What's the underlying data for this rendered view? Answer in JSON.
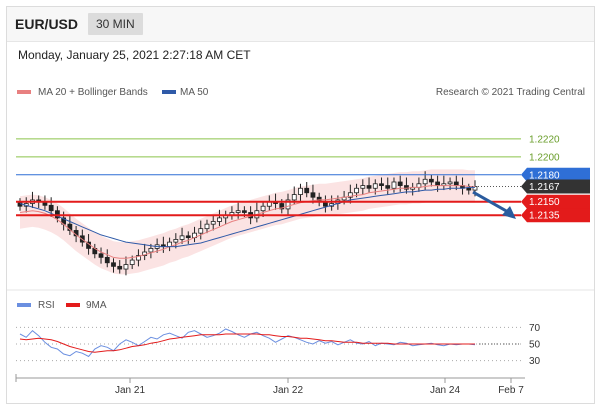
{
  "header": {
    "pair": "EUR/USD",
    "timeframe": "30 MIN"
  },
  "timestamp": "Monday, January 25, 2021 2:27:18 AM CET",
  "legend": {
    "ma20_label": "MA 20 + Bollinger Bands",
    "ma50_label": "MA 50",
    "credit": "Research © 2021 Trading Central",
    "rsi_label": "RSI",
    "rsi_ma_label": "9MA"
  },
  "colors": {
    "ma20": "#e88080",
    "ma50": "#2f5aa8",
    "resistance_green": "#8bc34a",
    "pivot_blue": "#2f6fd6",
    "support_red": "#e31b1b",
    "current_price_tag": "#333333",
    "bollinger_fill": "#fbe3e3",
    "forecast_arrow": "#2a5b9e",
    "rsi": "#6b8fe0",
    "rsi_ma": "#e31b1b"
  },
  "chart_data": [
    {
      "type": "candlestick",
      "title": "EUR/USD",
      "timeframe": "30 MIN",
      "ylim": [
        1.2055,
        1.226
      ],
      "x_labels": [
        "Jan 21",
        "Jan 22",
        "Jan 24",
        "Feb 7"
      ],
      "levels": [
        {
          "value": 1.222,
          "label": "1.2220",
          "kind": "resistance"
        },
        {
          "value": 1.22,
          "label": "1.2200",
          "kind": "resistance"
        },
        {
          "value": 1.218,
          "label": "1.2180",
          "kind": "pivot"
        },
        {
          "value": 1.2167,
          "label": "1.2167",
          "kind": "current"
        },
        {
          "value": 1.215,
          "label": "1.2150",
          "kind": "support"
        },
        {
          "value": 1.2135,
          "label": "1.2135",
          "kind": "support"
        }
      ],
      "close": [
        1.2145,
        1.2148,
        1.2152,
        1.215,
        1.2146,
        1.214,
        1.2132,
        1.2125,
        1.2118,
        1.2112,
        1.2105,
        1.2098,
        1.2092,
        1.2088,
        1.2082,
        1.2078,
        1.2075,
        1.208,
        1.2085,
        1.209,
        1.2094,
        1.2098,
        1.2102,
        1.21,
        1.2105,
        1.2108,
        1.2112,
        1.211,
        1.2115,
        1.212,
        1.2125,
        1.2128,
        1.2132,
        1.2135,
        1.2138,
        1.214,
        1.2138,
        1.2132,
        1.214,
        1.2145,
        1.215,
        1.2148,
        1.2142,
        1.2152,
        1.2158,
        1.2165,
        1.216,
        1.2155,
        1.215,
        1.2145,
        1.2148,
        1.2152,
        1.2155,
        1.216,
        1.2165,
        1.2168,
        1.2165,
        1.217,
        1.2168,
        1.2165,
        1.2172,
        1.2168,
        1.2164,
        1.2166,
        1.217,
        1.2175,
        1.2172,
        1.2168,
        1.217,
        1.2172,
        1.2168,
        1.2165,
        1.2163,
        1.2167
      ],
      "ma20": [
        1.2138,
        1.2139,
        1.214,
        1.2139,
        1.2137,
        1.2134,
        1.213,
        1.2125,
        1.2119,
        1.2113,
        1.2108,
        1.2103,
        1.2098,
        1.2094,
        1.2091,
        1.2088,
        1.2087,
        1.2087,
        1.2088,
        1.2089,
        1.2091,
        1.2093,
        1.2095,
        1.2097,
        1.21,
        1.2102,
        1.2105,
        1.2107,
        1.211,
        1.2113,
        1.2116,
        1.2119,
        1.2122,
        1.2125,
        1.2128,
        1.213,
        1.2132,
        1.2134,
        1.2136,
        1.2138,
        1.214,
        1.2142,
        1.2143,
        1.2145,
        1.2147,
        1.2149,
        1.215,
        1.2151,
        1.2152,
        1.2152,
        1.2153,
        1.2154,
        1.2155,
        1.2156,
        1.2157,
        1.2158,
        1.216,
        1.2161,
        1.2162,
        1.2163,
        1.2164,
        1.2165,
        1.2165,
        1.2166,
        1.2166,
        1.2167,
        1.2168,
        1.2168,
        1.2168,
        1.2168,
        1.2168,
        1.2168,
        1.2167,
        1.2167
      ],
      "ma50": [
        1.2148,
        1.2146,
        1.2144,
        1.2142,
        1.214,
        1.2137,
        1.2134,
        1.2131,
        1.2128,
        1.2125,
        1.2122,
        1.2119,
        1.2116,
        1.2113,
        1.2111,
        1.2109,
        1.2107,
        1.2105,
        1.2104,
        1.2103,
        1.2102,
        1.2101,
        1.21,
        1.21,
        1.21,
        1.21,
        1.2101,
        1.2102,
        1.2103,
        1.2104,
        1.2106,
        1.2108,
        1.211,
        1.2112,
        1.2114,
        1.2116,
        1.2118,
        1.212,
        1.2122,
        1.2124,
        1.2126,
        1.2128,
        1.213,
        1.2132,
        1.2134,
        1.2136,
        1.2138,
        1.214,
        1.2142,
        1.2144,
        1.2146,
        1.2148,
        1.215,
        1.2152,
        1.2153,
        1.2154,
        1.2155,
        1.2156,
        1.2157,
        1.2158,
        1.2159,
        1.216,
        1.2161,
        1.2161,
        1.2162,
        1.2163,
        1.2163,
        1.2164,
        1.2164,
        1.2165,
        1.2165,
        1.2165,
        1.2166,
        1.2166
      ],
      "bollinger_width": 0.0018
    },
    {
      "type": "line",
      "title": "RSI",
      "series": [
        {
          "name": "RSI",
          "values": [
            62,
            58,
            66,
            60,
            52,
            46,
            44,
            38,
            36,
            41,
            39,
            35,
            44,
            48,
            46,
            42,
            50,
            55,
            52,
            48,
            53,
            58,
            56,
            61,
            63,
            60,
            57,
            64,
            66,
            62,
            58,
            60,
            63,
            68,
            65,
            61,
            58,
            62,
            64,
            60,
            57,
            52,
            56,
            60,
            58,
            55,
            52,
            50,
            54,
            51,
            53,
            49,
            52,
            55,
            51,
            50,
            53,
            48,
            51,
            50,
            49,
            52,
            51,
            48,
            49,
            50,
            51,
            49,
            48,
            50,
            49,
            50,
            50,
            49
          ]
        },
        {
          "name": "9MA",
          "values": [
            56,
            55,
            56,
            57,
            56,
            55,
            53,
            50,
            47,
            45,
            43,
            41,
            40,
            41,
            42,
            42,
            43,
            45,
            47,
            48,
            49,
            51,
            52,
            54,
            56,
            57,
            58,
            59,
            60,
            61,
            61,
            61,
            61,
            62,
            62,
            62,
            62,
            62,
            62,
            61,
            61,
            60,
            59,
            59,
            58,
            57,
            57,
            56,
            55,
            54,
            54,
            53,
            52,
            52,
            52,
            51,
            51,
            51,
            51,
            51,
            50,
            50,
            50,
            50,
            50,
            50,
            50,
            50,
            50,
            50,
            50,
            50,
            50,
            50
          ]
        }
      ],
      "y_ticks": [
        30,
        50,
        70
      ],
      "ylim": [
        20,
        80
      ]
    }
  ]
}
